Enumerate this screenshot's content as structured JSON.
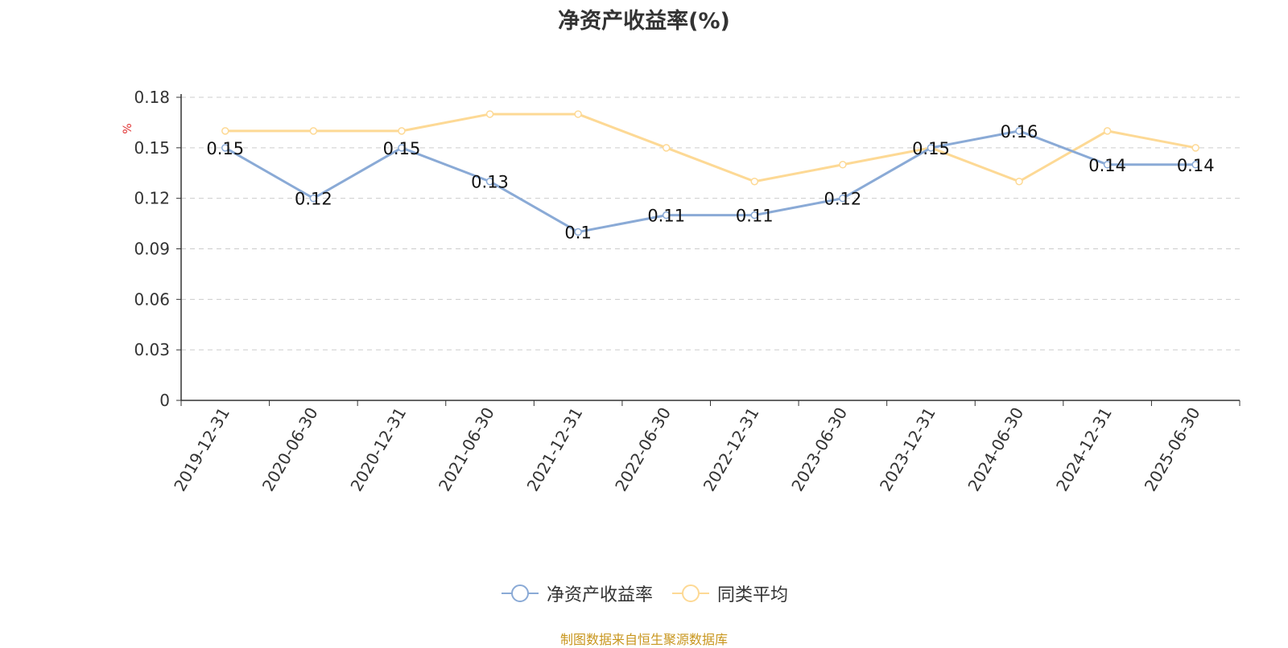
{
  "chart_data": {
    "type": "line",
    "title": "净资产收益率(%)",
    "ylabel": "%",
    "categories": [
      "2019-12-31",
      "2020-06-30",
      "2020-12-31",
      "2021-06-30",
      "2021-12-31",
      "2022-06-30",
      "2022-12-31",
      "2023-06-30",
      "2023-12-31",
      "2024-06-30",
      "2024-12-31",
      "2025-06-30"
    ],
    "series": [
      {
        "name": "净资产收益率",
        "color": "#8aaad6",
        "values": [
          0.15,
          0.12,
          0.15,
          0.13,
          0.1,
          0.11,
          0.11,
          0.12,
          0.15,
          0.16,
          0.14,
          0.14
        ],
        "labels": [
          "0.15",
          "0.12",
          "0.15",
          "0.13",
          "0.1",
          "0.11",
          "0.11",
          "0.12",
          "0.15",
          "0.16",
          "0.14",
          "0.14"
        ]
      },
      {
        "name": "同类平均",
        "color": "#fdd995",
        "values": [
          0.16,
          0.16,
          0.16,
          0.17,
          0.17,
          0.15,
          0.13,
          0.14,
          0.15,
          0.13,
          0.16,
          0.15
        ]
      }
    ],
    "yticks": [
      "0",
      "0.03",
      "0.06",
      "0.09",
      "0.12",
      "0.15",
      "0.18"
    ],
    "ylim": [
      0,
      0.18
    ],
    "grid": true,
    "legend_position": "bottom"
  },
  "source_note": "制图数据来自恒生聚源数据库"
}
